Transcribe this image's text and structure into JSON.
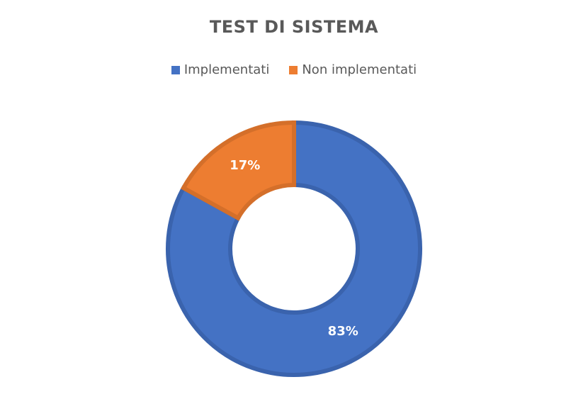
{
  "chart_data": {
    "type": "pie",
    "title": "TEST DI SISTEMA",
    "donut": true,
    "legend_position": "top",
    "categories": [
      "Implementati",
      "Non implementati"
    ],
    "values": [
      83,
      17
    ],
    "data_labels": [
      "83%",
      "17%"
    ],
    "colors": [
      "#4472C4",
      "#ED7D31"
    ],
    "border_colors": [
      "#3A63AD",
      "#D46F2A"
    ]
  }
}
